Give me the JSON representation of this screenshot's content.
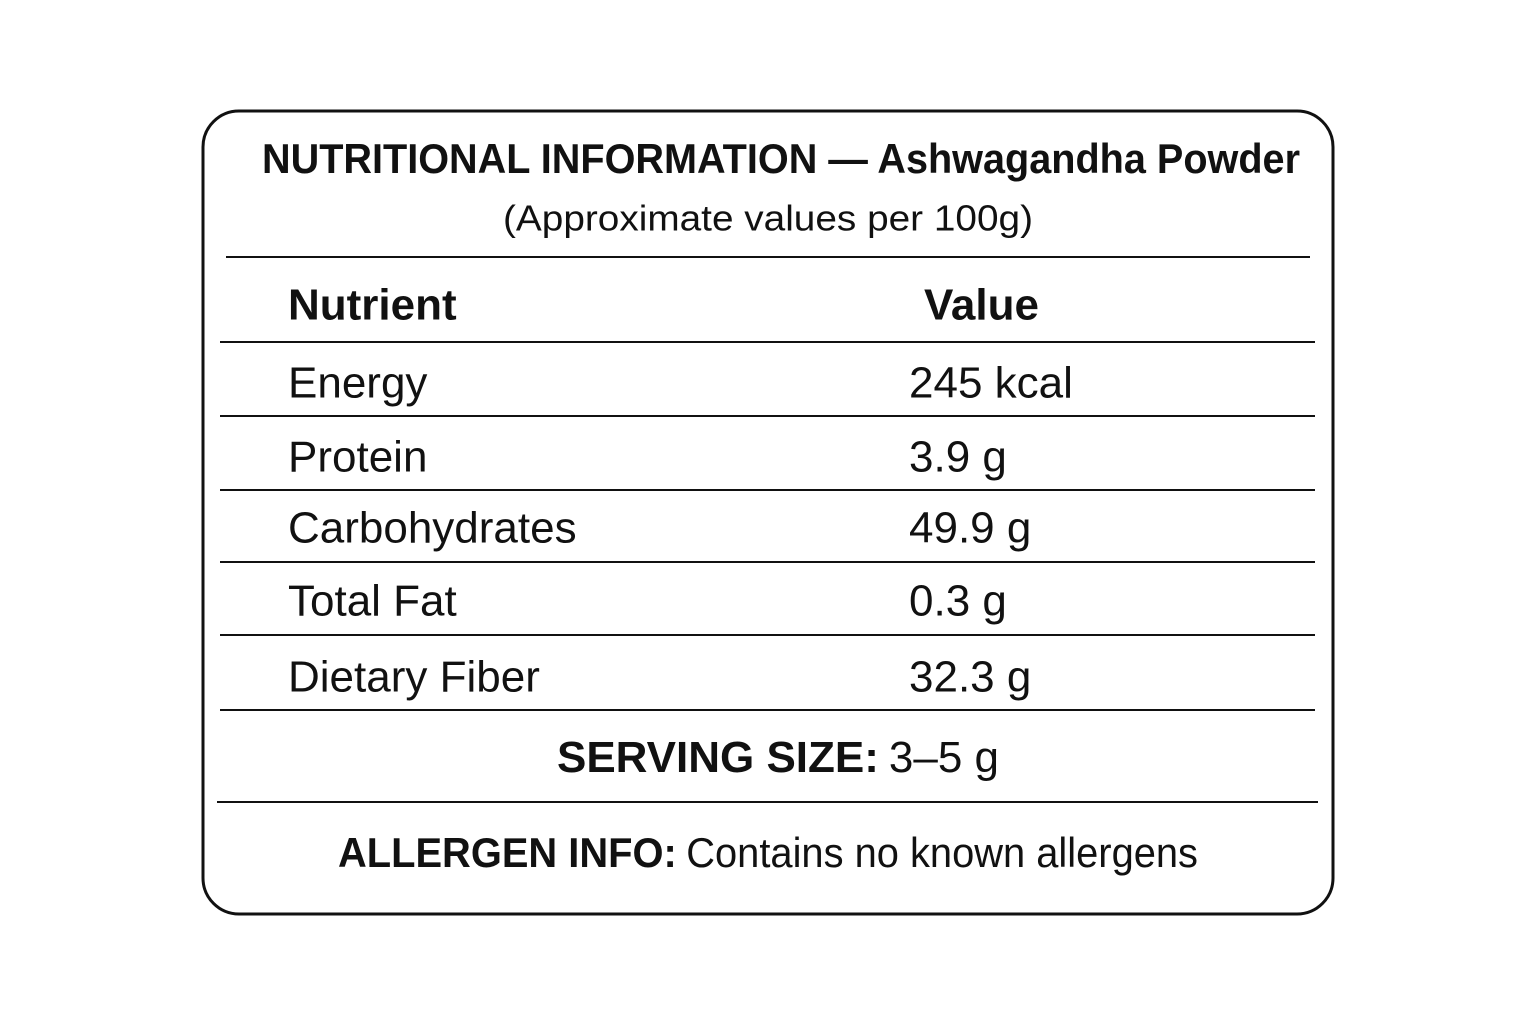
{
  "header": {
    "title_main": "NUTRITIONAL INFORMATION —",
    "title_product": "Ashwagandha Powder",
    "subtitle": "(Approximate values per 100g)"
  },
  "table": {
    "columns": [
      "Nutrient",
      "Value"
    ],
    "rows": [
      [
        "Energy",
        "245 kcal"
      ],
      [
        "Protein",
        "3.9 g"
      ],
      [
        "Carbohydrates",
        "49.9 g"
      ],
      [
        "Total Fat",
        "0.3 g"
      ],
      [
        "Dietary Fiber",
        "32.3 g"
      ]
    ]
  },
  "serving": {
    "label": "SERVING SIZE:",
    "value": "3–5 g"
  },
  "allergen": {
    "label": "ALLERGEN INFO:",
    "value": "Contains no known allergens"
  }
}
